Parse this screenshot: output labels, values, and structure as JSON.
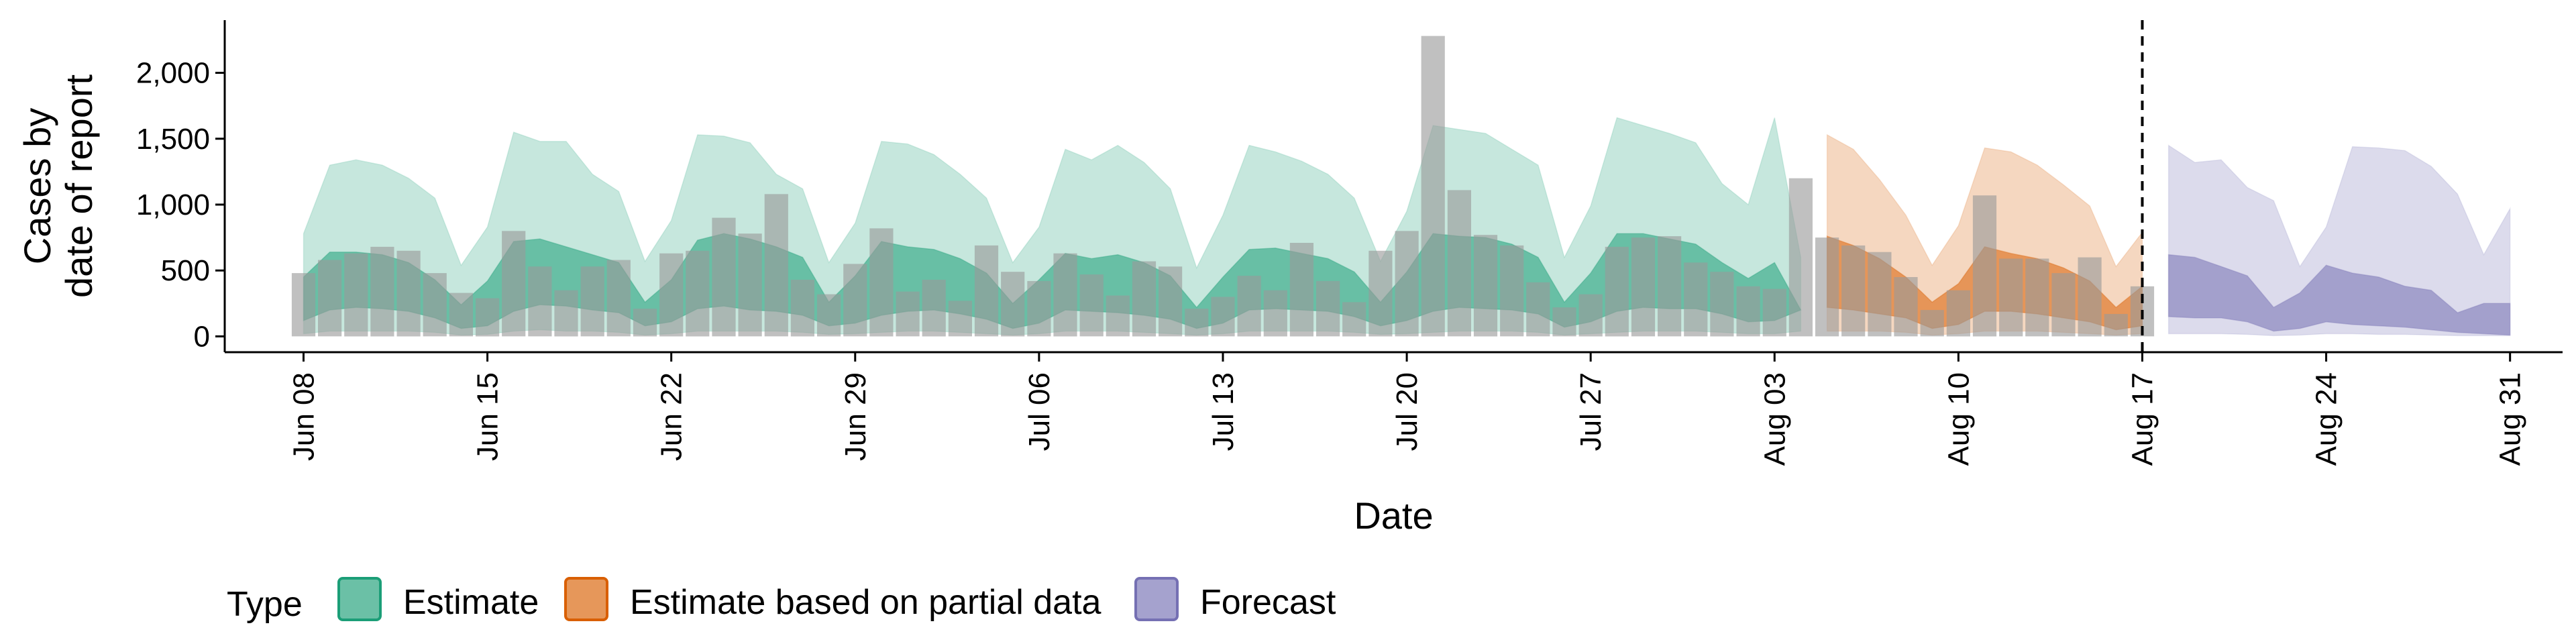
{
  "chart_data": {
    "type": "area",
    "xlabel": "Date",
    "ylabel": [
      "Cases by",
      "date of report"
    ],
    "x_range": [
      "2020-06-05",
      "2020-09-02"
    ],
    "ylim": [
      -120,
      2400
    ],
    "yticks": [
      0,
      500,
      1000,
      1500,
      2000
    ],
    "ytick_labels": [
      "0",
      "500",
      "1,000",
      "1,500",
      "2,000"
    ],
    "xticks": [
      "2020-06-08",
      "2020-06-15",
      "2020-06-22",
      "2020-06-29",
      "2020-07-06",
      "2020-07-13",
      "2020-07-20",
      "2020-07-27",
      "2020-08-03",
      "2020-08-10",
      "2020-08-17",
      "2020-08-24",
      "2020-08-31"
    ],
    "xtick_labels": [
      "Jun 08",
      "Jun 15",
      "Jun 22",
      "Jun 29",
      "Jul 06",
      "Jul 13",
      "Jul 20",
      "Jul 27",
      "Aug 03",
      "Aug 10",
      "Aug 17",
      "Aug 24",
      "Aug 31"
    ],
    "vline_date": "2020-08-17",
    "legend": {
      "title": "Type",
      "placement": "bottom",
      "items": [
        {
          "label": "Estimate",
          "color": "#1b9e77"
        },
        {
          "label": "Estimate based on partial data",
          "color": "#d95f02"
        },
        {
          "label": "Forecast",
          "color": "#7570b3"
        }
      ]
    },
    "colors": {
      "Estimate": "#1b9e77",
      "Estimate based on partial data": "#d95f02",
      "Forecast": "#7570b3",
      "bars": "#999999"
    },
    "bars": {
      "dates": [
        "2020-06-08",
        "2020-06-09",
        "2020-06-10",
        "2020-06-11",
        "2020-06-12",
        "2020-06-13",
        "2020-06-14",
        "2020-06-15",
        "2020-06-16",
        "2020-06-17",
        "2020-06-18",
        "2020-06-19",
        "2020-06-20",
        "2020-06-21",
        "2020-06-22",
        "2020-06-23",
        "2020-06-24",
        "2020-06-25",
        "2020-06-26",
        "2020-06-27",
        "2020-06-28",
        "2020-06-29",
        "2020-06-30",
        "2020-07-01",
        "2020-07-02",
        "2020-07-03",
        "2020-07-04",
        "2020-07-05",
        "2020-07-06",
        "2020-07-07",
        "2020-07-08",
        "2020-07-09",
        "2020-07-10",
        "2020-07-11",
        "2020-07-12",
        "2020-07-13",
        "2020-07-14",
        "2020-07-15",
        "2020-07-16",
        "2020-07-17",
        "2020-07-18",
        "2020-07-19",
        "2020-07-20",
        "2020-07-21",
        "2020-07-22",
        "2020-07-23",
        "2020-07-24",
        "2020-07-25",
        "2020-07-26",
        "2020-07-27",
        "2020-07-28",
        "2020-07-29",
        "2020-07-30",
        "2020-07-31",
        "2020-08-01",
        "2020-08-02",
        "2020-08-03",
        "2020-08-04",
        "2020-08-05",
        "2020-08-06",
        "2020-08-07",
        "2020-08-08",
        "2020-08-09",
        "2020-08-10",
        "2020-08-11",
        "2020-08-12",
        "2020-08-13",
        "2020-08-14",
        "2020-08-15",
        "2020-08-16",
        "2020-08-17"
      ],
      "values": [
        480,
        580,
        630,
        680,
        650,
        480,
        330,
        290,
        800,
        530,
        350,
        530,
        580,
        210,
        630,
        650,
        900,
        780,
        1080,
        430,
        320,
        550,
        820,
        340,
        430,
        270,
        690,
        490,
        420,
        630,
        470,
        310,
        570,
        530,
        210,
        300,
        460,
        350,
        710,
        420,
        260,
        650,
        800,
        2280,
        1110,
        770,
        690,
        410,
        220,
        320,
        680,
        750,
        760,
        560,
        490,
        380,
        360,
        1200,
        750,
        690,
        640,
        450,
        200,
        350,
        1070,
        590,
        590,
        480,
        600,
        170,
        380
      ]
    },
    "series": [
      {
        "name": "Estimate",
        "dates": [
          "2020-06-08",
          "2020-06-09",
          "2020-06-10",
          "2020-06-11",
          "2020-06-12",
          "2020-06-13",
          "2020-06-14",
          "2020-06-15",
          "2020-06-16",
          "2020-06-17",
          "2020-06-18",
          "2020-06-19",
          "2020-06-20",
          "2020-06-21",
          "2020-06-22",
          "2020-06-23",
          "2020-06-24",
          "2020-06-25",
          "2020-06-26",
          "2020-06-27",
          "2020-06-28",
          "2020-06-29",
          "2020-06-30",
          "2020-07-01",
          "2020-07-02",
          "2020-07-03",
          "2020-07-04",
          "2020-07-05",
          "2020-07-06",
          "2020-07-07",
          "2020-07-08",
          "2020-07-09",
          "2020-07-10",
          "2020-07-11",
          "2020-07-12",
          "2020-07-13",
          "2020-07-14",
          "2020-07-15",
          "2020-07-16",
          "2020-07-17",
          "2020-07-18",
          "2020-07-19",
          "2020-07-20",
          "2020-07-21",
          "2020-07-22",
          "2020-07-23",
          "2020-07-24",
          "2020-07-25",
          "2020-07-26",
          "2020-07-27",
          "2020-07-28",
          "2020-07-29",
          "2020-07-30",
          "2020-07-31",
          "2020-08-01",
          "2020-08-02",
          "2020-08-03",
          "2020-08-04"
        ],
        "outer_low": [
          20,
          40,
          40,
          40,
          40,
          30,
          10,
          15,
          40,
          50,
          40,
          40,
          30,
          10,
          20,
          40,
          40,
          40,
          40,
          30,
          15,
          20,
          30,
          40,
          40,
          30,
          20,
          10,
          20,
          40,
          40,
          40,
          30,
          20,
          10,
          20,
          40,
          40,
          40,
          40,
          30,
          15,
          20,
          30,
          40,
          40,
          40,
          30,
          10,
          20,
          30,
          40,
          40,
          40,
          30,
          20,
          20,
          40
        ],
        "outer_high": [
          780,
          1300,
          1340,
          1300,
          1200,
          1050,
          540,
          830,
          1550,
          1480,
          1480,
          1230,
          1100,
          570,
          880,
          1530,
          1520,
          1470,
          1230,
          1120,
          560,
          860,
          1480,
          1460,
          1380,
          1230,
          1050,
          560,
          830,
          1420,
          1340,
          1450,
          1320,
          1120,
          520,
          920,
          1450,
          1400,
          1330,
          1230,
          1050,
          570,
          950,
          1600,
          1570,
          1540,
          1420,
          1300,
          600,
          990,
          1660,
          1600,
          1540,
          1470,
          1160,
          1000,
          1660,
          600
        ],
        "inner_low": [
          120,
          200,
          220,
          210,
          190,
          140,
          60,
          80,
          190,
          240,
          230,
          200,
          180,
          80,
          110,
          210,
          230,
          200,
          190,
          160,
          80,
          100,
          160,
          190,
          200,
          170,
          130,
          60,
          100,
          200,
          190,
          180,
          160,
          130,
          60,
          100,
          200,
          210,
          200,
          190,
          150,
          80,
          120,
          190,
          220,
          210,
          200,
          170,
          70,
          110,
          190,
          220,
          210,
          210,
          170,
          110,
          120,
          200
        ],
        "inner_high": [
          450,
          640,
          640,
          620,
          560,
          430,
          240,
          420,
          720,
          740,
          680,
          620,
          560,
          260,
          430,
          730,
          780,
          740,
          680,
          600,
          260,
          460,
          720,
          680,
          660,
          590,
          480,
          250,
          430,
          630,
          590,
          620,
          560,
          460,
          220,
          450,
          660,
          670,
          630,
          590,
          490,
          260,
          490,
          780,
          760,
          750,
          700,
          600,
          260,
          480,
          780,
          780,
          740,
          700,
          560,
          440,
          560,
          200
        ]
      },
      {
        "name": "Estimate based on partial data",
        "dates": [
          "2020-08-05",
          "2020-08-06",
          "2020-08-07",
          "2020-08-08",
          "2020-08-09",
          "2020-08-10",
          "2020-08-11",
          "2020-08-12",
          "2020-08-13",
          "2020-08-14",
          "2020-08-15",
          "2020-08-16",
          "2020-08-17"
        ],
        "outer_low": [
          40,
          40,
          40,
          30,
          10,
          20,
          40,
          40,
          40,
          30,
          20,
          10,
          20
        ],
        "outer_high": [
          1530,
          1420,
          1190,
          920,
          540,
          840,
          1430,
          1400,
          1300,
          1150,
          990,
          530,
          790
        ],
        "inner_low": [
          220,
          200,
          170,
          140,
          60,
          90,
          190,
          190,
          170,
          140,
          110,
          50,
          80
        ],
        "inner_high": [
          760,
          690,
          590,
          450,
          260,
          400,
          680,
          630,
          590,
          520,
          420,
          220,
          380
        ]
      },
      {
        "name": "Forecast",
        "dates": [
          "2020-08-18",
          "2020-08-19",
          "2020-08-20",
          "2020-08-21",
          "2020-08-22",
          "2020-08-23",
          "2020-08-24",
          "2020-08-25",
          "2020-08-26",
          "2020-08-27",
          "2020-08-28",
          "2020-08-29",
          "2020-08-30",
          "2020-08-31"
        ],
        "outer_low": [
          20,
          20,
          20,
          15,
          5,
          10,
          20,
          20,
          15,
          15,
          10,
          5,
          5,
          5
        ],
        "outer_high": [
          1450,
          1320,
          1340,
          1130,
          1030,
          530,
          830,
          1440,
          1430,
          1410,
          1290,
          1080,
          620,
          970
        ],
        "inner_low": [
          150,
          140,
          140,
          110,
          40,
          60,
          110,
          90,
          80,
          70,
          50,
          30,
          20,
          10
        ],
        "inner_high": [
          620,
          600,
          530,
          460,
          220,
          330,
          540,
          480,
          450,
          380,
          350,
          180,
          250,
          250
        ]
      }
    ]
  }
}
